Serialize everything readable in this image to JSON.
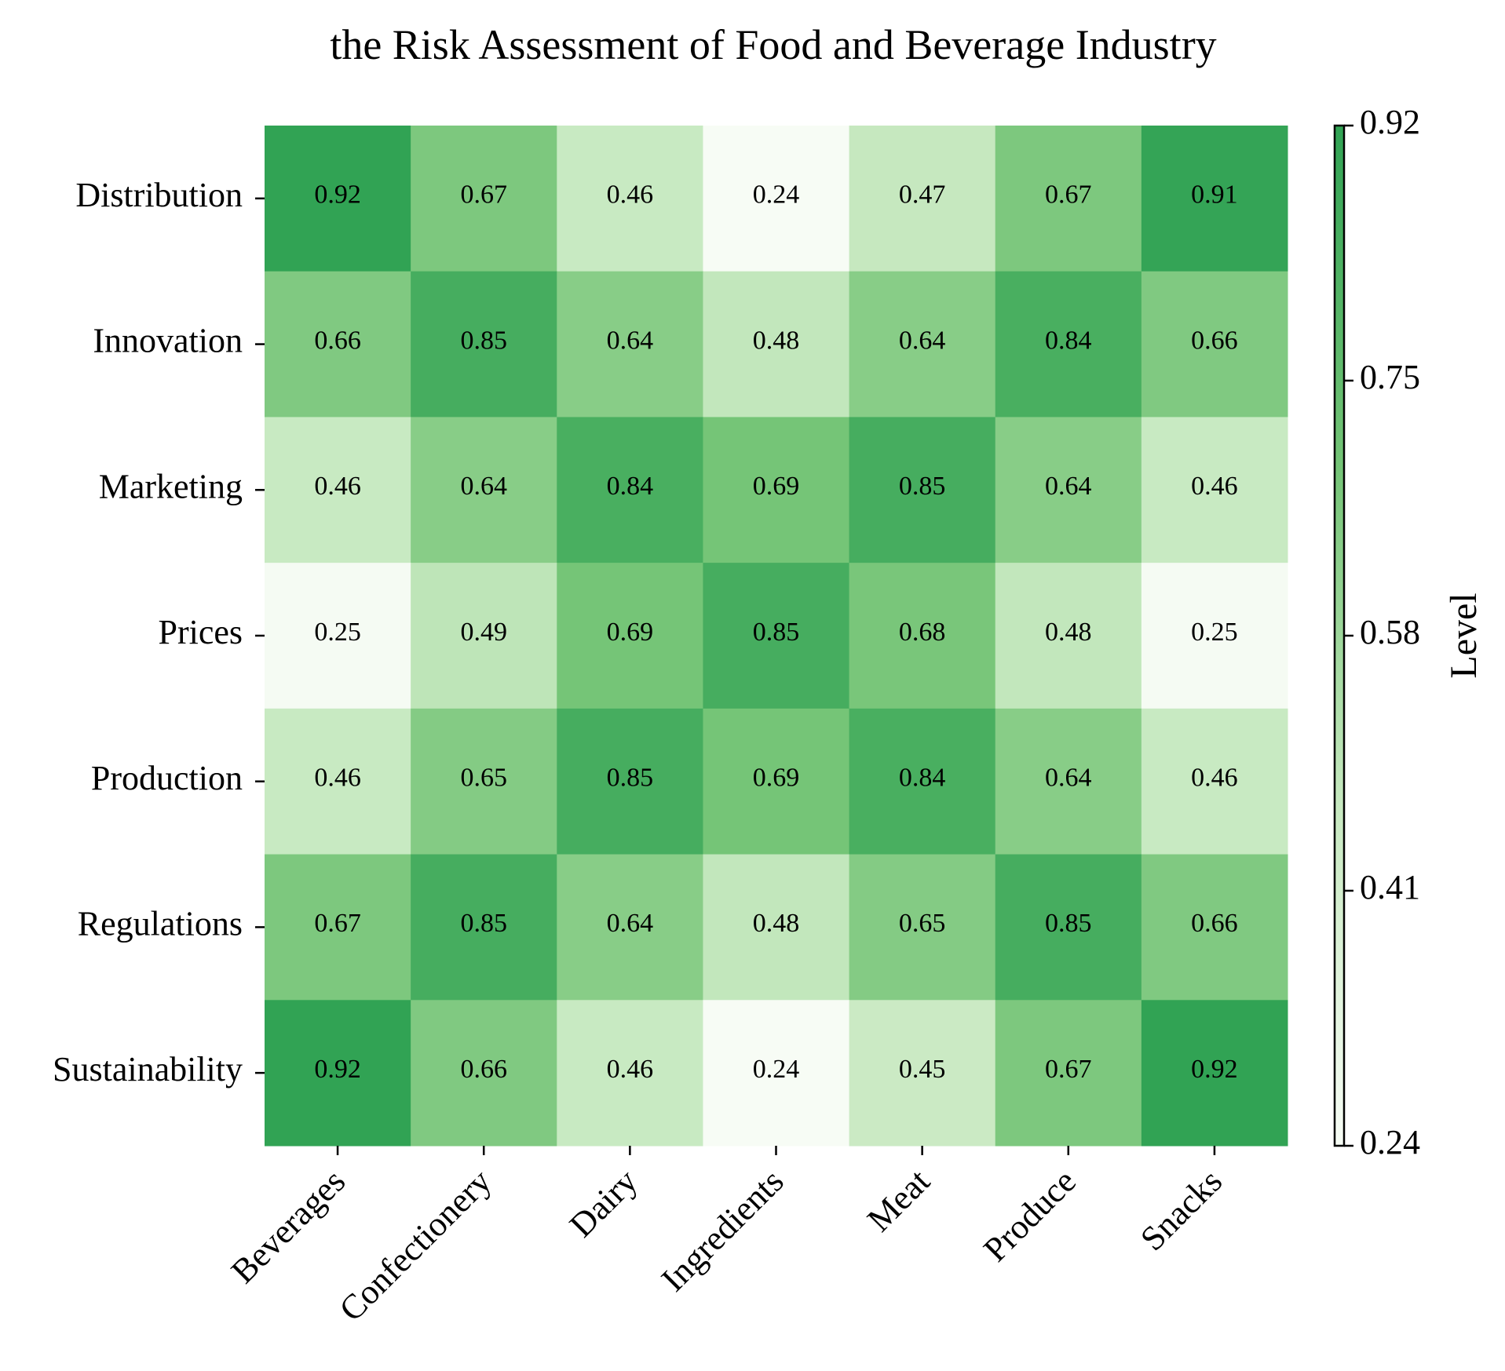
{
  "chart_data": {
    "type": "heatmap",
    "title": "the Risk Assessment of Food and Beverage Industry",
    "x_categories": [
      "Beverages",
      "Confectionery",
      "Dairy",
      "Ingredients",
      "Meat",
      "Produce",
      "Snacks"
    ],
    "y_categories": [
      "Distribution",
      "Innovation",
      "Marketing",
      "Prices",
      "Production",
      "Regulations",
      "Sustainability"
    ],
    "values": [
      [
        0.92,
        0.67,
        0.46,
        0.24,
        0.47,
        0.67,
        0.91
      ],
      [
        0.66,
        0.85,
        0.64,
        0.48,
        0.64,
        0.84,
        0.66
      ],
      [
        0.46,
        0.64,
        0.84,
        0.69,
        0.85,
        0.64,
        0.46
      ],
      [
        0.25,
        0.49,
        0.69,
        0.85,
        0.68,
        0.48,
        0.25
      ],
      [
        0.46,
        0.65,
        0.85,
        0.69,
        0.84,
        0.64,
        0.46
      ],
      [
        0.67,
        0.85,
        0.64,
        0.48,
        0.65,
        0.85,
        0.66
      ],
      [
        0.92,
        0.66,
        0.46,
        0.24,
        0.45,
        0.67,
        0.92
      ]
    ],
    "colorbar": {
      "label": "Level",
      "min": 0.24,
      "max": 0.92,
      "ticks": [
        "0.24",
        "0.41",
        "0.58",
        "0.75",
        "0.92"
      ],
      "colors": [
        "#f7fcf5",
        "#c7e9c0",
        "#74c476",
        "#31a354"
      ]
    },
    "grid": false,
    "legend": "colorbar-right"
  }
}
